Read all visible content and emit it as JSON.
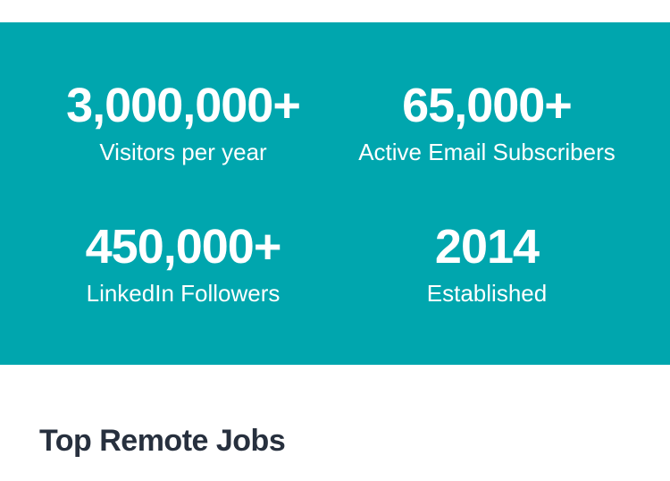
{
  "stats_panel": {
    "background_color": "#00a6ae",
    "text_color": "#ffffff",
    "stats": [
      {
        "value": "3,000,000+",
        "label": "Visitors per year"
      },
      {
        "value": "65,000+",
        "label": "Active Email Subscribers"
      },
      {
        "value": "450,000+",
        "label": "LinkedIn Followers"
      },
      {
        "value": "2014",
        "label": "Established"
      }
    ]
  },
  "jobs_section": {
    "heading": "Top Remote Jobs",
    "heading_color": "#27303e"
  }
}
